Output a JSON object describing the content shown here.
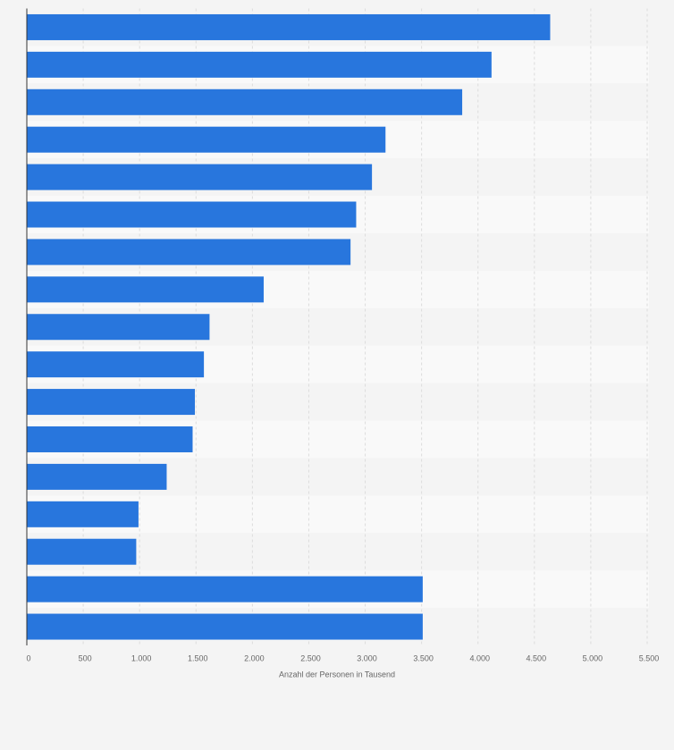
{
  "chart_data": {
    "type": "barh",
    "x_label": "Anzahl der Personen in Tausend",
    "categories": [
      null,
      null,
      null,
      null,
      null,
      null,
      null,
      null,
      null,
      null,
      null,
      null,
      null,
      null,
      null,
      null,
      null
    ],
    "values": [
      4640,
      4120,
      3860,
      3180,
      3060,
      2920,
      2870,
      2100,
      1620,
      1570,
      1490,
      1470,
      1240,
      990,
      970,
      3510,
      3510
    ],
    "color": "#2876dd",
    "xlim": [
      0,
      5500
    ],
    "xticks": [
      0,
      500,
      {
        "value": 1000,
        "label": "1.000"
      },
      {
        "value": 1500,
        "label": "1.500"
      },
      {
        "value": 2000,
        "label": "2.000"
      },
      {
        "value": 2500,
        "label": "2.500"
      },
      {
        "value": 3000,
        "label": "3.000"
      },
      {
        "value": 3500,
        "label": "3.500"
      },
      {
        "value": 4000,
        "label": "4.000"
      },
      {
        "value": 4500,
        "label": "4.500"
      },
      {
        "value": 5000,
        "label": "5.000"
      },
      {
        "value": 5500,
        "label": "5.500"
      }
    ],
    "grid": true
  }
}
